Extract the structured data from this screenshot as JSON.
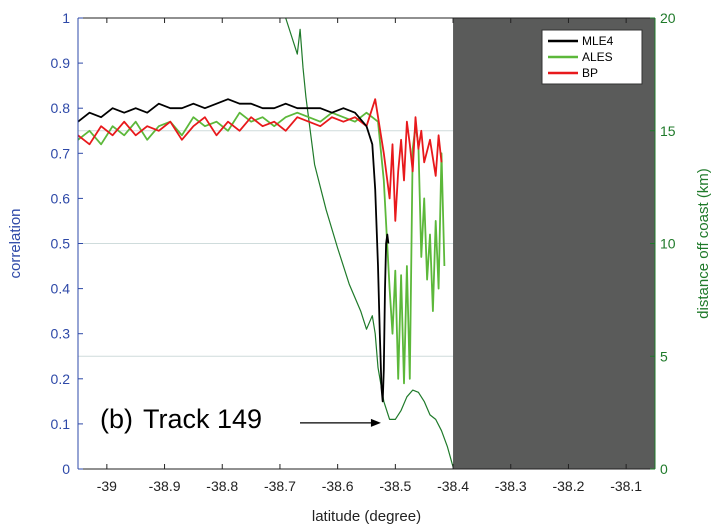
{
  "chart_data": {
    "type": "line",
    "xlabel": "latitude (degree)",
    "ylabel_left": "correlation",
    "ylabel_right": "distance off coast (km)",
    "xlim": [
      -39.05,
      -38.05
    ],
    "ylim_left": [
      0,
      1
    ],
    "ylim_right": [
      0,
      20
    ],
    "x_ticks": [
      "-39",
      "-38.9",
      "-38.8",
      "-38.7",
      "-38.6",
      "-38.5",
      "-38.4",
      "-38.3",
      "-38.2",
      "-38.1"
    ],
    "x_tick_values": [
      -39,
      -38.9,
      -38.8,
      -38.7,
      -38.6,
      -38.5,
      -38.4,
      -38.3,
      -38.2,
      -38.1
    ],
    "y_left_ticks": [
      "0",
      "0.1",
      "0.2",
      "0.3",
      "0.4",
      "0.5",
      "0.6",
      "0.7",
      "0.8",
      "0.9",
      "1"
    ],
    "y_left_tick_values": [
      0,
      0.1,
      0.2,
      0.3,
      0.4,
      0.5,
      0.6,
      0.7,
      0.8,
      0.9,
      1
    ],
    "y_right_ticks": [
      "0",
      "5",
      "10",
      "15",
      "20"
    ],
    "y_right_tick_values": [
      0,
      5,
      10,
      15,
      20
    ],
    "gridlines_left": [
      0.25,
      0.5,
      0.75
    ],
    "land_region": {
      "x_from": -38.4,
      "x_to": -38.05,
      "color": "#5a5b5a"
    },
    "legend": {
      "position": "top-right",
      "entries": [
        "MLE4",
        "ALES",
        "BP"
      ]
    },
    "colors": {
      "MLE4": "#000000",
      "ALES": "#5cb83a",
      "BP": "#e8191c",
      "distance": "#1f7a2a",
      "left_axis": "#2e49a8",
      "right_axis": "#1f7a2a"
    },
    "annotation": {
      "label": "(b)",
      "text": "Track 149",
      "arrow_to": [
        -38.525,
        0.1
      ]
    },
    "series": [
      {
        "name": "MLE4",
        "axis": "left",
        "x": [
          -39.05,
          -39.03,
          -39.01,
          -38.99,
          -38.97,
          -38.95,
          -38.93,
          -38.91,
          -38.89,
          -38.87,
          -38.85,
          -38.83,
          -38.81,
          -38.79,
          -38.77,
          -38.75,
          -38.73,
          -38.71,
          -38.69,
          -38.67,
          -38.65,
          -38.63,
          -38.61,
          -38.59,
          -38.57,
          -38.55,
          -38.54,
          -38.535,
          -38.53,
          -38.527,
          -38.524,
          -38.522,
          -38.52,
          -38.518,
          -38.516,
          -38.514,
          -38.512
        ],
        "y": [
          0.77,
          0.79,
          0.78,
          0.8,
          0.79,
          0.8,
          0.79,
          0.81,
          0.8,
          0.8,
          0.81,
          0.8,
          0.81,
          0.82,
          0.81,
          0.81,
          0.8,
          0.8,
          0.81,
          0.8,
          0.8,
          0.8,
          0.79,
          0.8,
          0.79,
          0.76,
          0.72,
          0.62,
          0.45,
          0.3,
          0.18,
          0.15,
          0.22,
          0.4,
          0.5,
          0.52,
          0.5
        ]
      },
      {
        "name": "ALES",
        "axis": "left",
        "x": [
          -39.05,
          -39.03,
          -39.01,
          -38.99,
          -38.97,
          -38.95,
          -38.93,
          -38.91,
          -38.89,
          -38.87,
          -38.85,
          -38.83,
          -38.81,
          -38.79,
          -38.77,
          -38.75,
          -38.73,
          -38.71,
          -38.69,
          -38.67,
          -38.65,
          -38.63,
          -38.61,
          -38.59,
          -38.57,
          -38.55,
          -38.53,
          -38.52,
          -38.51,
          -38.505,
          -38.5,
          -38.495,
          -38.49,
          -38.485,
          -38.48,
          -38.475,
          -38.47,
          -38.465,
          -38.46,
          -38.455,
          -38.45,
          -38.445,
          -38.44,
          -38.435,
          -38.43,
          -38.425,
          -38.42,
          -38.415
        ],
        "y": [
          0.73,
          0.75,
          0.72,
          0.76,
          0.74,
          0.77,
          0.73,
          0.76,
          0.77,
          0.74,
          0.78,
          0.76,
          0.77,
          0.75,
          0.79,
          0.77,
          0.78,
          0.76,
          0.78,
          0.79,
          0.78,
          0.77,
          0.79,
          0.78,
          0.77,
          0.79,
          0.77,
          0.64,
          0.4,
          0.3,
          0.44,
          0.2,
          0.43,
          0.19,
          0.45,
          0.2,
          0.71,
          0.76,
          0.72,
          0.47,
          0.6,
          0.42,
          0.52,
          0.35,
          0.55,
          0.4,
          0.7,
          0.45
        ]
      },
      {
        "name": "BP",
        "axis": "left",
        "x": [
          -39.05,
          -39.03,
          -39.01,
          -38.99,
          -38.97,
          -38.95,
          -38.93,
          -38.91,
          -38.89,
          -38.87,
          -38.85,
          -38.83,
          -38.81,
          -38.79,
          -38.77,
          -38.75,
          -38.73,
          -38.71,
          -38.69,
          -38.67,
          -38.65,
          -38.63,
          -38.61,
          -38.59,
          -38.57,
          -38.55,
          -38.535,
          -38.52,
          -38.51,
          -38.505,
          -38.5,
          -38.495,
          -38.49,
          -38.485,
          -38.48,
          -38.475,
          -38.47,
          -38.465,
          -38.46,
          -38.455,
          -38.45,
          -38.44,
          -38.43,
          -38.425,
          -38.42
        ],
        "y": [
          0.74,
          0.72,
          0.76,
          0.74,
          0.77,
          0.74,
          0.76,
          0.75,
          0.77,
          0.73,
          0.76,
          0.78,
          0.74,
          0.77,
          0.75,
          0.78,
          0.76,
          0.77,
          0.75,
          0.78,
          0.77,
          0.76,
          0.78,
          0.77,
          0.78,
          0.76,
          0.82,
          0.7,
          0.6,
          0.72,
          0.55,
          0.66,
          0.73,
          0.64,
          0.77,
          0.72,
          0.66,
          0.78,
          0.71,
          0.75,
          0.68,
          0.73,
          0.65,
          0.74,
          0.68
        ]
      },
      {
        "name": "",
        "axis": "right",
        "x": [
          -38.69,
          -38.67,
          -38.665,
          -38.66,
          -38.655,
          -38.65,
          -38.64,
          -38.62,
          -38.6,
          -38.58,
          -38.56,
          -38.55,
          -38.54,
          -38.535,
          -38.53,
          -38.52,
          -38.51,
          -38.5,
          -38.49,
          -38.48,
          -38.47,
          -38.46,
          -38.45,
          -38.44,
          -38.43,
          -38.42,
          -38.41,
          -38.4
        ],
        "y": [
          20,
          18.4,
          19.5,
          17.8,
          16.5,
          15.5,
          13.5,
          11.5,
          9.8,
          8.2,
          7.0,
          6.2,
          6.8,
          6.0,
          4.5,
          3.0,
          2.2,
          2.2,
          2.6,
          3.2,
          3.5,
          3.4,
          3.0,
          2.4,
          2.2,
          1.7,
          1.0,
          0.1
        ]
      }
    ]
  }
}
